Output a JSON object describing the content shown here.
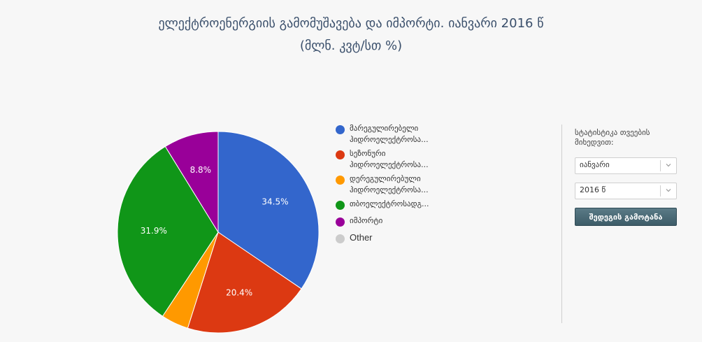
{
  "title": {
    "line1": "ელექტროენერგიის გამომუშავება და იმპორტი. იანვარი 2016 წ",
    "line2": "(მლნ. კვტ/სთ %)"
  },
  "chart_data": {
    "type": "pie",
    "title": "ელექტროენერგიის გამომუშავება და იმპორტი. იანვარი 2016 წ (მლნ. კვტ/სთ %)",
    "start_angle_deg": 0,
    "direction": "clockwise",
    "legend_position": "right",
    "slices": [
      {
        "name": "მარეგულირებელი ჰიდროელექტროსა...",
        "line1": "მარეგულირებელი",
        "line2": "ჰიდროელექტროსა...",
        "value": 34.5,
        "label": "34.5%",
        "color": "#3366cc"
      },
      {
        "name": "სეზონური ჰიდროელექტროსა...",
        "line1": "სეზონური",
        "line2": "ჰიდროელექტროსა...",
        "value": 20.4,
        "label": "20.4%",
        "color": "#dc3912"
      },
      {
        "name": "დერეგულირებული ჰიდროელექტროსა...",
        "line1": "დერეგულირებული",
        "line2": "ჰიდროელექტროსა...",
        "value": 4.4,
        "label": "",
        "color": "#ff9900"
      },
      {
        "name": "თბოელექტროსადგ...",
        "line1": "თბოელექტროსადგ...",
        "line2": "",
        "value": 31.9,
        "label": "31.9%",
        "color": "#109618"
      },
      {
        "name": "იმპორტი",
        "line1": "იმპორტი",
        "line2": "",
        "value": 8.8,
        "label": "8.8%",
        "color": "#990099"
      },
      {
        "name": "Other",
        "line1": "Other",
        "line2": "",
        "value": 0,
        "label": "",
        "color": "#cccccc"
      }
    ]
  },
  "sidebar": {
    "label": "სტატისტიკა თვეების მიხედვით:",
    "month_select": {
      "value": "იანვარი"
    },
    "year_select": {
      "value": "2016 წ"
    },
    "show_button": "შედეგის გამოტანა"
  }
}
